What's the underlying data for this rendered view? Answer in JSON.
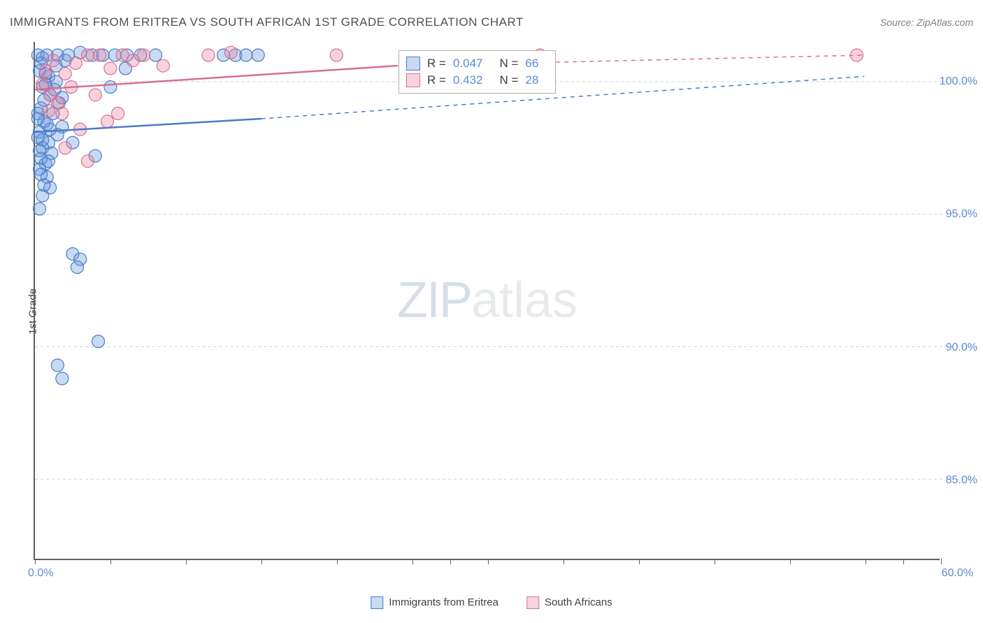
{
  "title": "IMMIGRANTS FROM ERITREA VS SOUTH AFRICAN 1ST GRADE CORRELATION CHART",
  "source_label": "Source: ",
  "source_name": "ZipAtlas.com",
  "yaxis_title": "1st Grade",
  "watermark_zip": "ZIP",
  "watermark_atlas": "atlas",
  "chart": {
    "type": "scatter",
    "xlim": [
      0,
      60
    ],
    "ylim": [
      82,
      101.5
    ],
    "xtick_positions": [
      0,
      5,
      10,
      15,
      20,
      25,
      27.5,
      30,
      35,
      40,
      45,
      50,
      55,
      57.5,
      60
    ],
    "xtick_labels_shown": {
      "0": "0.0%",
      "60": "60.0%"
    },
    "ytick_positions": [
      85,
      90,
      95,
      100
    ],
    "ytick_labels": {
      "85": "85.0%",
      "90": "90.0%",
      "95": "95.0%",
      "100": "100.0%"
    },
    "grid_color": "#d0d0d0",
    "axis_color": "#606060",
    "background_color": "#ffffff",
    "marker_radius": 9,
    "marker_stroke_width": 1.2,
    "series": [
      {
        "name": "Immigrants from Eritrea",
        "fill": "rgba(100,150,220,0.35)",
        "stroke": "#4a7bc8",
        "R": "0.047",
        "N": "66",
        "trend_solid": {
          "x1": 0,
          "y1": 98.1,
          "x2": 15,
          "y2": 98.6
        },
        "trend_dash": {
          "x1": 15,
          "y1": 98.6,
          "x2": 55,
          "y2": 100.2
        },
        "points": [
          [
            0.2,
            101.0
          ],
          [
            0.8,
            101.0
          ],
          [
            1.5,
            101.0
          ],
          [
            2.2,
            101.0
          ],
          [
            3.0,
            101.1
          ],
          [
            3.8,
            101.0
          ],
          [
            4.5,
            101.0
          ],
          [
            5.3,
            101.0
          ],
          [
            6.1,
            101.0
          ],
          [
            7.0,
            101.0
          ],
          [
            8.0,
            101.0
          ],
          [
            0.3,
            100.4
          ],
          [
            0.9,
            100.2
          ],
          [
            1.4,
            100.0
          ],
          [
            0.5,
            99.8
          ],
          [
            1.0,
            99.5
          ],
          [
            1.6,
            99.2
          ],
          [
            0.4,
            99.0
          ],
          [
            1.2,
            98.8
          ],
          [
            0.6,
            98.5
          ],
          [
            1.8,
            98.3
          ],
          [
            0.3,
            98.1
          ],
          [
            0.2,
            97.9
          ],
          [
            0.9,
            97.7
          ],
          [
            0.5,
            97.5
          ],
          [
            1.1,
            97.3
          ],
          [
            0.4,
            97.1
          ],
          [
            0.7,
            96.9
          ],
          [
            0.3,
            96.7
          ],
          [
            0.8,
            96.4
          ],
          [
            1.0,
            96.0
          ],
          [
            0.5,
            95.7
          ],
          [
            0.3,
            95.2
          ],
          [
            2.5,
            93.5
          ],
          [
            3.0,
            93.3
          ],
          [
            2.8,
            93.0
          ],
          [
            4.2,
            90.2
          ],
          [
            1.5,
            89.3
          ],
          [
            1.8,
            88.8
          ],
          [
            12.5,
            101.0
          ],
          [
            13.3,
            101.0
          ],
          [
            14.0,
            101.0
          ],
          [
            14.8,
            101.0
          ],
          [
            6.0,
            100.5
          ],
          [
            5.0,
            99.8
          ],
          [
            2.5,
            97.7
          ],
          [
            4.0,
            97.2
          ],
          [
            0.4,
            100.7
          ],
          [
            0.7,
            100.3
          ],
          [
            1.3,
            99.7
          ],
          [
            0.6,
            99.3
          ],
          [
            0.2,
            98.8
          ],
          [
            0.8,
            98.4
          ],
          [
            1.5,
            98.0
          ],
          [
            0.5,
            97.8
          ],
          [
            0.3,
            97.4
          ],
          [
            0.9,
            97.0
          ],
          [
            0.4,
            96.5
          ],
          [
            0.6,
            96.1
          ],
          [
            0.2,
            98.6
          ],
          [
            1.0,
            98.2
          ],
          [
            0.7,
            99.9
          ],
          [
            1.4,
            100.6
          ],
          [
            2.0,
            100.8
          ],
          [
            0.5,
            100.9
          ],
          [
            1.8,
            99.4
          ]
        ]
      },
      {
        "name": "South Africans",
        "fill": "rgba(235,130,160,0.35)",
        "stroke": "#d6708f",
        "R": "0.432",
        "N": "28",
        "trend_solid": {
          "x1": 0,
          "y1": 99.7,
          "x2": 24,
          "y2": 100.6
        },
        "trend_dash": {
          "x1": 24,
          "y1": 100.6,
          "x2": 55,
          "y2": 101.0
        },
        "points": [
          [
            0.5,
            99.9
          ],
          [
            1.0,
            99.5
          ],
          [
            1.5,
            99.2
          ],
          [
            2.0,
            100.3
          ],
          [
            2.7,
            100.7
          ],
          [
            3.5,
            101.0
          ],
          [
            4.3,
            101.0
          ],
          [
            5.0,
            100.5
          ],
          [
            5.8,
            101.0
          ],
          [
            2.0,
            97.5
          ],
          [
            3.5,
            97.0
          ],
          [
            5.5,
            98.8
          ],
          [
            4.8,
            98.5
          ],
          [
            3.0,
            98.2
          ],
          [
            11.5,
            101.0
          ],
          [
            13.0,
            101.1
          ],
          [
            20.0,
            101.0
          ],
          [
            33.5,
            101.0
          ],
          [
            54.5,
            101.0
          ],
          [
            1.2,
            100.8
          ],
          [
            0.7,
            100.4
          ],
          [
            2.4,
            99.8
          ],
          [
            4.0,
            99.5
          ],
          [
            6.5,
            100.8
          ],
          [
            7.2,
            101.0
          ],
          [
            8.5,
            100.6
          ],
          [
            1.8,
            98.8
          ],
          [
            0.9,
            98.9
          ]
        ]
      }
    ]
  },
  "legend_box": {
    "R_label": "R =",
    "N_label": "N ="
  },
  "legend_bottom": {
    "series1": "Immigrants from Eritrea",
    "series2": "South Africans"
  }
}
